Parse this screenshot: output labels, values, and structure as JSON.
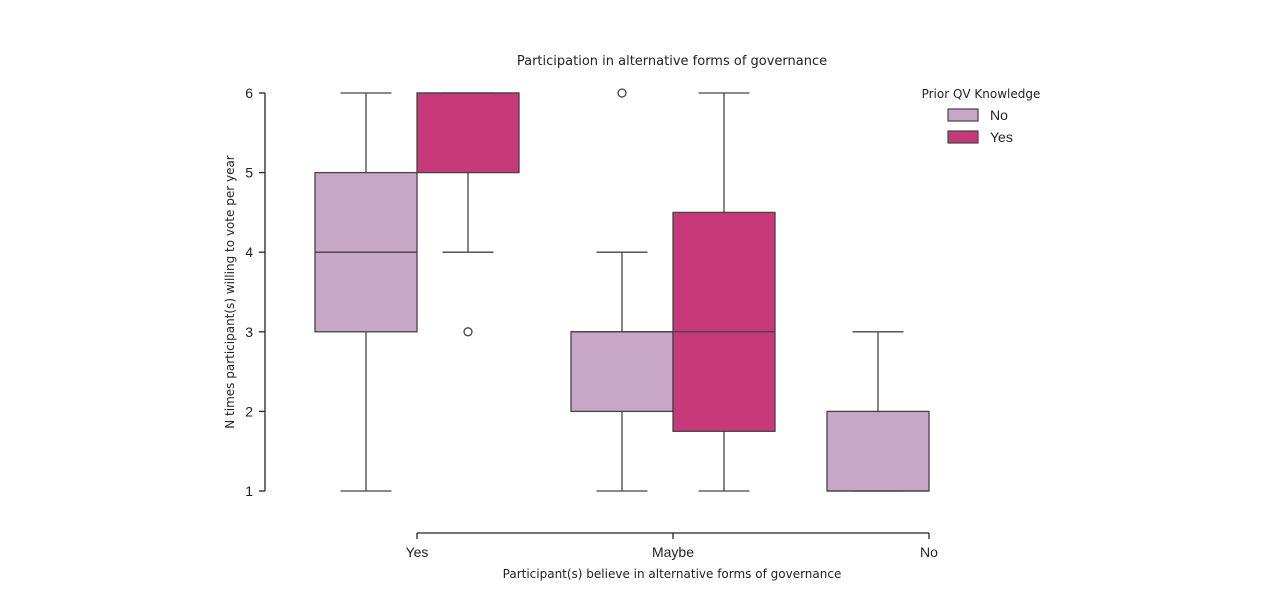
{
  "chart_data": {
    "type": "box",
    "title": "Participation in alternative forms of governance",
    "xlabel": "Participant(s) believe in alternative forms of governance",
    "ylabel": "N times participant(s) willing to vote per year",
    "categories": [
      "Yes",
      "Maybe",
      "No"
    ],
    "yticks": [
      1,
      2,
      3,
      4,
      5,
      6
    ],
    "ylim": [
      1,
      6
    ],
    "legend": {
      "title": "Prior QV Knowledge",
      "position": "top-right"
    },
    "series": [
      {
        "name": "No",
        "color": "#c8a6c8",
        "boxes": [
          {
            "category": "Yes",
            "min": 1,
            "q1": 3,
            "median": 4,
            "q3": 5,
            "max": 6,
            "outliers": []
          },
          {
            "category": "Maybe",
            "min": 1,
            "q1": 2,
            "median": 3,
            "q3": 3,
            "max": 4,
            "outliers": [
              6
            ]
          },
          {
            "category": "No",
            "min": 1,
            "q1": 1,
            "median": 1,
            "q3": 2,
            "max": 3,
            "outliers": []
          }
        ]
      },
      {
        "name": "Yes",
        "color": "#c73a7a",
        "boxes": [
          {
            "category": "Yes",
            "min": 4,
            "q1": 5,
            "median": 6,
            "q3": 6,
            "max": 6,
            "outliers": [
              3
            ]
          },
          {
            "category": "Maybe",
            "min": 1,
            "q1": 1.75,
            "median": 3,
            "q3": 4.5,
            "max": 6,
            "outliers": []
          }
        ]
      }
    ],
    "grid": false
  }
}
